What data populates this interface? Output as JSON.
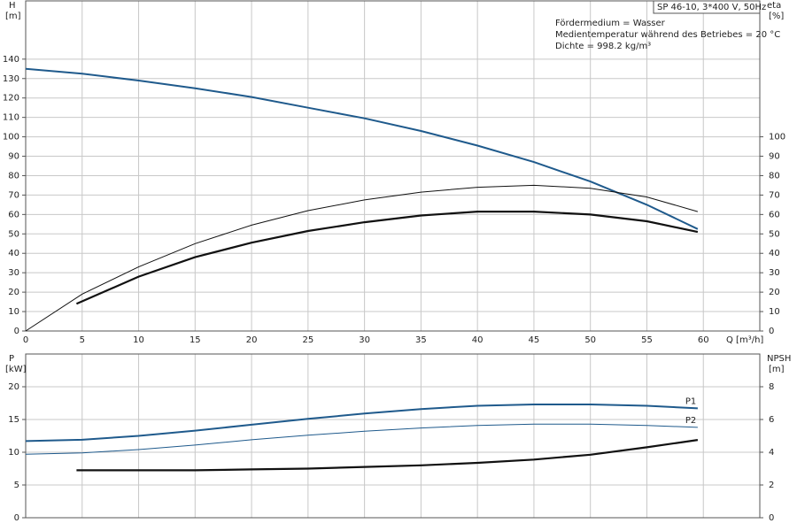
{
  "chart_data": [
    {
      "type": "line",
      "model": "SP 46-10, 3*400 V, 50Hz",
      "annotations": [
        "Fördermedium = Wasser",
        "Medientemperatur während des Betriebes = 20 °C",
        "Dichte = 998.2 kg/m³"
      ],
      "y_label": "H",
      "y_unit": "[m]",
      "y2_label": "eta",
      "y2_unit": "[%]",
      "x_label": "Q [m³/h]",
      "xlim": [
        0,
        65
      ],
      "xticks": [
        0,
        5,
        10,
        15,
        20,
        25,
        30,
        35,
        40,
        45,
        50,
        55,
        60
      ],
      "ylim": [
        0,
        170
      ],
      "yticks": [
        0,
        10,
        20,
        30,
        40,
        50,
        60,
        70,
        80,
        90,
        100,
        110,
        120,
        130,
        140
      ],
      "y2lim": [
        0,
        170
      ],
      "y2ticks": [
        0,
        10,
        20,
        30,
        40,
        50,
        60,
        70,
        80,
        90,
        100
      ],
      "grid": true,
      "series": [
        {
          "color": "#1f5a8c",
          "x": [
            0,
            5,
            10,
            15,
            20,
            25,
            30,
            35,
            40,
            45,
            50,
            55,
            59.5
          ],
          "values": [
            135,
            132.5,
            129,
            125,
            120.5,
            115,
            109.5,
            103,
            95.5,
            87,
            77,
            65,
            52.5
          ]
        },
        {
          "color": "#111111",
          "axis": "y2",
          "x": [
            0,
            5,
            10,
            15,
            20,
            25,
            30,
            35,
            40,
            45,
            50,
            55,
            59.5
          ],
          "values": [
            0,
            19,
            33,
            45,
            54.5,
            62,
            67.5,
            71.5,
            74,
            75,
            73.5,
            69,
            61.5
          ]
        },
        {
          "color": "#111111",
          "axis": "y2",
          "x": [
            4.5,
            10,
            15,
            20,
            25,
            30,
            35,
            40,
            45,
            50,
            55,
            59.5
          ],
          "values": [
            14,
            28,
            38,
            45.5,
            51.5,
            56,
            59.5,
            61.5,
            61.5,
            60,
            56.5,
            51
          ]
        }
      ]
    },
    {
      "type": "line",
      "y_label": "P",
      "y_unit": "[kW]",
      "y2_label": "NPSH",
      "y2_unit": "[m]",
      "xlim": [
        0,
        65
      ],
      "xticks": [
        0,
        5,
        10,
        15,
        20,
        25,
        30,
        35,
        40,
        45,
        50,
        55,
        60
      ],
      "ylim": [
        0,
        25
      ],
      "yticks": [
        0,
        5,
        10,
        15,
        20
      ],
      "y2lim": [
        0,
        10
      ],
      "y2ticks": [
        0,
        2,
        4,
        6,
        8
      ],
      "grid": true,
      "series": [
        {
          "name": "P1",
          "color": "#1f5a8c",
          "x": [
            0,
            5,
            10,
            15,
            20,
            25,
            30,
            35,
            40,
            45,
            50,
            55,
            59.5
          ],
          "values": [
            11.7,
            11.9,
            12.5,
            13.3,
            14.2,
            15.1,
            15.9,
            16.6,
            17.1,
            17.3,
            17.3,
            17.1,
            16.7
          ]
        },
        {
          "name": "P2",
          "color": "#1f5a8c",
          "x": [
            0,
            5,
            10,
            15,
            20,
            25,
            30,
            35,
            40,
            45,
            50,
            55,
            59.5
          ],
          "values": [
            9.7,
            9.9,
            10.4,
            11.1,
            11.9,
            12.6,
            13.2,
            13.7,
            14.1,
            14.3,
            14.3,
            14.1,
            13.8
          ]
        },
        {
          "color": "#111111",
          "axis": "y2",
          "x": [
            4.5,
            10,
            15,
            20,
            25,
            30,
            35,
            40,
            45,
            50,
            55,
            59.5
          ],
          "values": [
            2.9,
            2.9,
            2.9,
            2.95,
            3.0,
            3.1,
            3.2,
            3.35,
            3.55,
            3.85,
            4.3,
            4.75
          ]
        }
      ]
    }
  ]
}
